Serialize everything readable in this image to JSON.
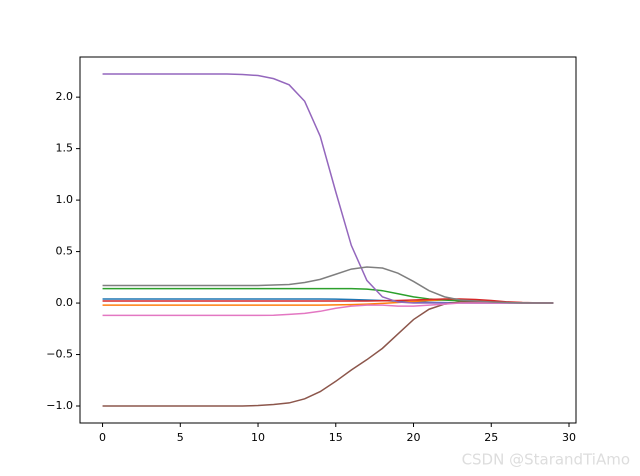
{
  "chart_data": {
    "type": "line",
    "x": [
      0,
      1,
      2,
      3,
      4,
      5,
      6,
      7,
      8,
      9,
      10,
      11,
      12,
      13,
      14,
      15,
      16,
      17,
      18,
      19,
      20,
      21,
      22,
      23,
      24,
      25,
      26,
      27,
      28,
      29
    ],
    "series": [
      {
        "color": "#1f77b4",
        "values": [
          0.04,
          0.04,
          0.04,
          0.04,
          0.04,
          0.04,
          0.04,
          0.04,
          0.04,
          0.04,
          0.04,
          0.04,
          0.04,
          0.04,
          0.04,
          0.038,
          0.035,
          0.03,
          0.025,
          0.018,
          0.012,
          0.007,
          0.004,
          0.002,
          0.001,
          0,
          0,
          0,
          0,
          0
        ]
      },
      {
        "color": "#ff7f0e",
        "values": [
          -0.02,
          -0.02,
          -0.02,
          -0.02,
          -0.02,
          -0.02,
          -0.02,
          -0.02,
          -0.02,
          -0.02,
          -0.02,
          -0.02,
          -0.02,
          -0.02,
          -0.02,
          -0.018,
          -0.015,
          -0.01,
          -0.003,
          0.005,
          0.015,
          0.025,
          0.03,
          0.03,
          0.025,
          0.015,
          0.008,
          0.003,
          0.001,
          0
        ]
      },
      {
        "color": "#2ca02c",
        "values": [
          0.14,
          0.14,
          0.14,
          0.14,
          0.14,
          0.14,
          0.14,
          0.14,
          0.14,
          0.14,
          0.14,
          0.14,
          0.14,
          0.14,
          0.14,
          0.14,
          0.14,
          0.135,
          0.12,
          0.09,
          0.06,
          0.04,
          0.03,
          0.02,
          0.015,
          0.01,
          0.005,
          0.002,
          0.001,
          0
        ]
      },
      {
        "color": "#d62728",
        "values": [
          0.02,
          0.02,
          0.02,
          0.02,
          0.02,
          0.02,
          0.02,
          0.02,
          0.02,
          0.02,
          0.02,
          0.02,
          0.02,
          0.02,
          0.02,
          0.02,
          0.02,
          0.02,
          0.022,
          0.025,
          0.03,
          0.035,
          0.04,
          0.04,
          0.035,
          0.025,
          0.012,
          0.005,
          0.002,
          0
        ]
      },
      {
        "color": "#9467bd",
        "values": [
          2.225,
          2.225,
          2.225,
          2.225,
          2.225,
          2.225,
          2.225,
          2.225,
          2.225,
          2.22,
          2.21,
          2.18,
          2.12,
          1.96,
          1.62,
          1.08,
          0.56,
          0.22,
          0.06,
          0.01,
          0,
          0,
          0,
          0,
          0,
          0,
          0,
          0,
          0,
          0
        ]
      },
      {
        "color": "#8c564b",
        "values": [
          -1.0,
          -1.0,
          -1.0,
          -1.0,
          -1.0,
          -1.0,
          -1.0,
          -1.0,
          -1.0,
          -1.0,
          -0.995,
          -0.985,
          -0.97,
          -0.93,
          -0.86,
          -0.76,
          -0.65,
          -0.55,
          -0.44,
          -0.3,
          -0.16,
          -0.06,
          -0.01,
          0.01,
          0.01,
          0.01,
          0.005,
          0,
          0,
          0
        ]
      },
      {
        "color": "#e377c2",
        "values": [
          -0.12,
          -0.12,
          -0.12,
          -0.12,
          -0.12,
          -0.12,
          -0.12,
          -0.12,
          -0.12,
          -0.12,
          -0.12,
          -0.118,
          -0.11,
          -0.1,
          -0.08,
          -0.05,
          -0.03,
          -0.02,
          -0.02,
          -0.03,
          -0.03,
          -0.02,
          -0.01,
          0,
          0,
          0,
          0,
          0,
          0,
          0
        ]
      },
      {
        "color": "#7f7f7f",
        "values": [
          0.17,
          0.17,
          0.17,
          0.17,
          0.17,
          0.17,
          0.17,
          0.17,
          0.17,
          0.17,
          0.17,
          0.175,
          0.18,
          0.2,
          0.23,
          0.28,
          0.33,
          0.35,
          0.34,
          0.29,
          0.21,
          0.12,
          0.06,
          0.03,
          0.02,
          0.01,
          0.005,
          0.002,
          0.001,
          0
        ]
      }
    ],
    "xlim": [
      -1.45,
      30.45
    ],
    "ylim": [
      -1.165,
      2.39
    ],
    "xticks": [
      0,
      5,
      10,
      15,
      20,
      25,
      30
    ],
    "yticks": [
      {
        "value": -1.0,
        "label": "−1.0"
      },
      {
        "value": -0.5,
        "label": "−0.5"
      },
      {
        "value": 0.0,
        "label": "0.0"
      },
      {
        "value": 0.5,
        "label": "0.5"
      },
      {
        "value": 1.0,
        "label": "1.0"
      },
      {
        "value": 1.5,
        "label": "1.5"
      },
      {
        "value": 2.0,
        "label": "2.0"
      }
    ],
    "watermark": "CSDN @StarandTiAmo"
  }
}
